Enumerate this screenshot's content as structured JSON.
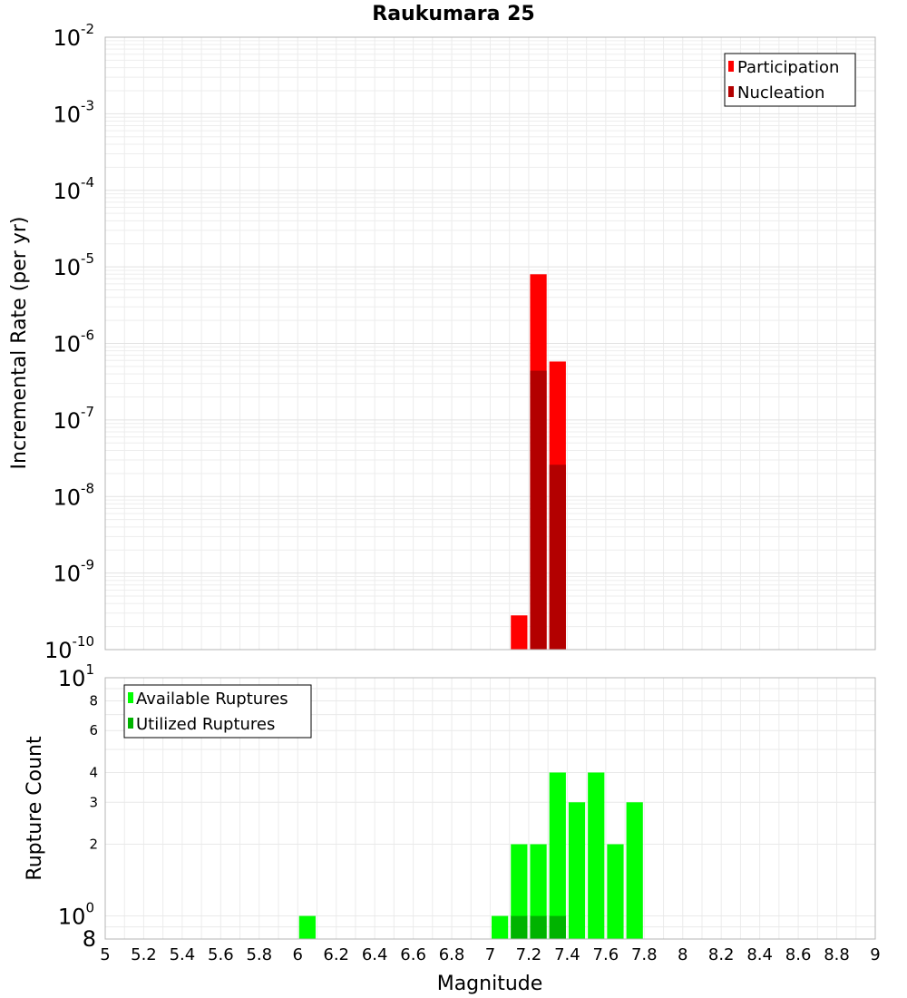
{
  "chart_data": [
    {
      "type": "bar",
      "title": "Raukumara 25",
      "xlabel": "",
      "ylabel": "Incremental Rate (per yr)",
      "yscale": "log",
      "ylim": [
        1e-10,
        0.01
      ],
      "xlim": [
        5,
        9
      ],
      "bin_width": 0.1,
      "grid": true,
      "legend_position": "top-right",
      "y_tick_labels": [
        {
          "base": "10",
          "exp": "-10"
        },
        {
          "base": "10",
          "exp": "-9"
        },
        {
          "base": "10",
          "exp": "-8"
        },
        {
          "base": "10",
          "exp": "-7"
        },
        {
          "base": "10",
          "exp": "-6"
        },
        {
          "base": "10",
          "exp": "-5"
        },
        {
          "base": "10",
          "exp": "-4"
        },
        {
          "base": "10",
          "exp": "-3"
        },
        {
          "base": "10",
          "exp": "-2"
        }
      ],
      "series": [
        {
          "name": "Participation",
          "color": "#ff0000",
          "points": [
            {
              "x": 7.15,
              "y": 2.8e-10
            },
            {
              "x": 7.25,
              "y": 8e-06
            },
            {
              "x": 7.35,
              "y": 5.8e-07
            }
          ]
        },
        {
          "name": "Nucleation",
          "color": "#b30000",
          "points": [
            {
              "x": 7.25,
              "y": 4.4e-07
            },
            {
              "x": 7.35,
              "y": 2.6e-08
            }
          ]
        }
      ]
    },
    {
      "type": "bar",
      "title": "",
      "xlabel": "Magnitude",
      "ylabel": "Rupture Count",
      "yscale": "log",
      "ylim": [
        0.8,
        10
      ],
      "xlim": [
        5,
        9
      ],
      "bin_width": 0.1,
      "grid": true,
      "legend_position": "top-left",
      "x_ticks": [
        "5",
        "5.2",
        "5.4",
        "5.6",
        "5.8",
        "6",
        "6.2",
        "6.4",
        "6.6",
        "6.8",
        "7",
        "7.2",
        "7.4",
        "7.6",
        "7.8",
        "8",
        "8.2",
        "8.4",
        "8.6",
        "8.8",
        "9"
      ],
      "y_minor_labels": [
        {
          "value": 2,
          "label": "2"
        },
        {
          "value": 3,
          "label": "3"
        },
        {
          "value": 4,
          "label": "4"
        },
        {
          "value": 6,
          "label": "6"
        },
        {
          "value": 8,
          "label": "8"
        }
      ],
      "y_major_labels": [
        {
          "value": 1,
          "base": "10",
          "exp": "0"
        },
        {
          "value": 10,
          "base": "10",
          "exp": "1"
        }
      ],
      "y_bottom_label": {
        "value": 0.8,
        "label": "8"
      },
      "series": [
        {
          "name": "Available Ruptures",
          "color": "#00ff00",
          "points": [
            {
              "x": 6.05,
              "y": 1
            },
            {
              "x": 7.05,
              "y": 1
            },
            {
              "x": 7.15,
              "y": 2
            },
            {
              "x": 7.25,
              "y": 2
            },
            {
              "x": 7.35,
              "y": 4
            },
            {
              "x": 7.45,
              "y": 3
            },
            {
              "x": 7.55,
              "y": 4
            },
            {
              "x": 7.65,
              "y": 2
            },
            {
              "x": 7.75,
              "y": 3
            }
          ]
        },
        {
          "name": "Utilized Ruptures",
          "color": "#00b300",
          "points": [
            {
              "x": 7.15,
              "y": 1
            },
            {
              "x": 7.25,
              "y": 1
            },
            {
              "x": 7.35,
              "y": 1
            }
          ]
        }
      ]
    }
  ]
}
